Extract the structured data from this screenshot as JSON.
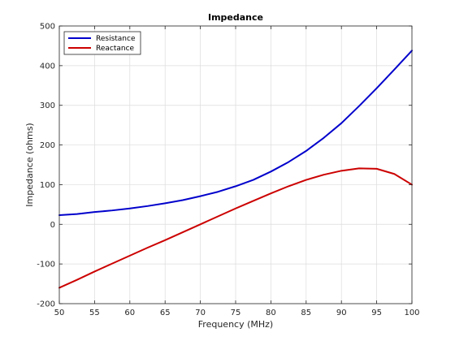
{
  "chart_data": {
    "type": "line",
    "title": "Impedance",
    "xlabel": "Frequency (MHz)",
    "ylabel": "Impedance (ohms)",
    "xlim": [
      50,
      100
    ],
    "ylim": [
      -200,
      500
    ],
    "xticks": [
      50,
      55,
      60,
      65,
      70,
      75,
      80,
      85,
      90,
      95,
      100
    ],
    "yticks": [
      -200,
      -100,
      0,
      100,
      200,
      300,
      400,
      500
    ],
    "grid": true,
    "legend_position": "top-left",
    "x": [
      50,
      52.5,
      55,
      57.5,
      60,
      62.5,
      65,
      67.5,
      70,
      72.5,
      75,
      77.5,
      80,
      82.5,
      85,
      87.5,
      90,
      92.5,
      95,
      97.5,
      100
    ],
    "series": [
      {
        "name": "Resistance",
        "color": "#0000cc",
        "values": [
          23,
          26,
          31,
          35,
          40,
          46,
          53,
          61,
          71,
          82,
          96,
          112,
          133,
          157,
          185,
          218,
          255,
          298,
          343,
          390,
          438
        ]
      },
      {
        "name": "Reactance",
        "color": "#cc0000",
        "values": [
          -160,
          -140,
          -119,
          -99,
          -79,
          -59,
          -40,
          -20,
          0,
          20,
          40,
          59,
          78,
          96,
          112,
          125,
          135,
          141,
          140,
          127,
          100
        ]
      }
    ]
  }
}
